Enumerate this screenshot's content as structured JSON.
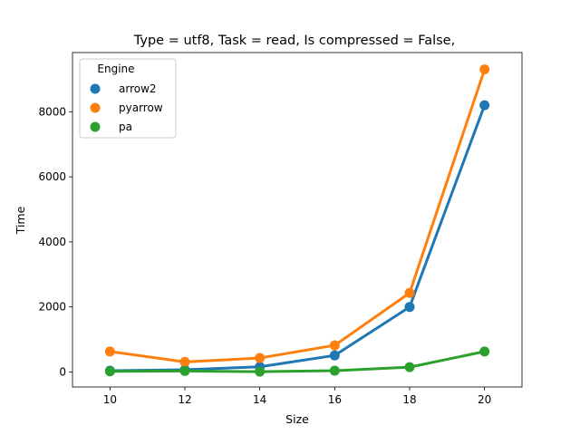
{
  "chart_data": {
    "type": "line",
    "title": "Type = utf8, Task = read, Is compressed = False,",
    "xlabel": "Size",
    "ylabel": "Time",
    "x": [
      10,
      12,
      14,
      16,
      18,
      20
    ],
    "xlim": [
      9,
      21
    ],
    "ylim": [
      -460,
      9820
    ],
    "xticks": [
      10,
      12,
      14,
      16,
      18,
      20
    ],
    "yticks": [
      0,
      2000,
      4000,
      6000,
      8000
    ],
    "grid": false,
    "legend": {
      "title": "Engine",
      "placement": "top-left"
    },
    "series": [
      {
        "name": "arrow2",
        "color": "#1f77b4",
        "values": [
          40,
          70,
          160,
          510,
          2000,
          8200
        ]
      },
      {
        "name": "pyarrow",
        "color": "#ff7f0e",
        "values": [
          630,
          310,
          430,
          820,
          2430,
          9300
        ]
      },
      {
        "name": "pa",
        "color": "#2ca02c",
        "values": [
          20,
          30,
          10,
          40,
          150,
          630
        ]
      }
    ]
  }
}
